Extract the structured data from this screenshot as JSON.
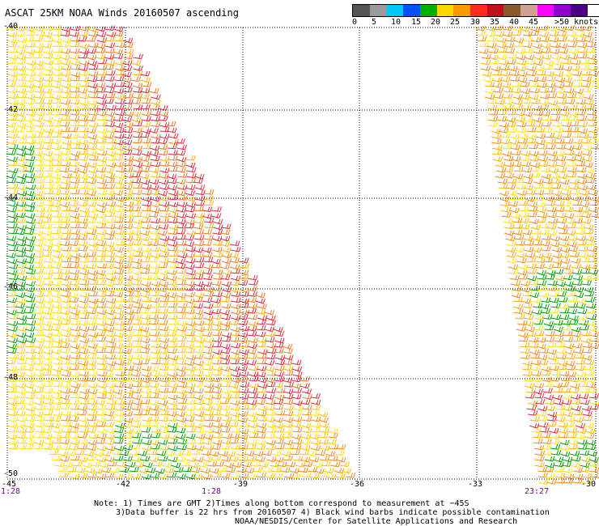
{
  "title": "ASCAT 25KM NOAA Winds 20160507 ascending",
  "legend": {
    "labels": [
      "0",
      "5",
      "10",
      "15",
      "20",
      "25",
      "30",
      "35",
      "40",
      "45",
      ">50 knots"
    ],
    "colors": [
      "#555555",
      "#9a9a9a",
      "#00c8ff",
      "#0050ff",
      "#00b000",
      "#ffd700",
      "#ff9a00",
      "#ff2a1f",
      "#c0101a",
      "#8b5a2b",
      "#d0a090",
      "#ff00ff",
      "#9000d0",
      "#4b0082"
    ]
  },
  "map": {
    "lat_labels": [
      "-40",
      "-42",
      "-44",
      "-46",
      "-48",
      "-50"
    ],
    "lon_labels": [
      "-45",
      "-42",
      "-39",
      "-36",
      "-33",
      "-30"
    ],
    "grid_lines": "dotted"
  },
  "times": {
    "left": "1:28",
    "middle": "1:28",
    "right": "23:27"
  },
  "notes": {
    "line1": "Note: 1) Times are GMT 2)Times along bottom correspond to measurement at −45S",
    "line2": "3)Data buffer is 22 hrs from 20160507 4) Black wind barbs indicate possible contamination",
    "line3": "NOAA/NESDIS/Center for Satellite Applications and Research"
  }
}
